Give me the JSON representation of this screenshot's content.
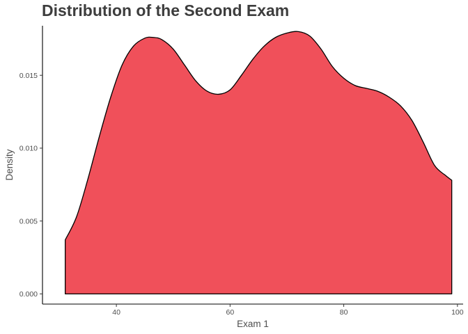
{
  "chart_data": {
    "type": "area",
    "title": "Distribution of the Second Exam",
    "xlabel": "Exam 1",
    "ylabel": "Density",
    "xlim": [
      27,
      101
    ],
    "ylim": [
      -0.0007,
      0.0184
    ],
    "x_ticks": [
      40,
      60,
      80,
      100
    ],
    "x_tick_labels": [
      "40",
      "60",
      "80",
      "100"
    ],
    "y_ticks": [
      0,
      0.005,
      0.01,
      0.015
    ],
    "y_tick_labels": [
      "0.000",
      "0.005",
      "0.010",
      "0.015"
    ],
    "grid": false,
    "legend": "none",
    "fill_color": "#F0505A",
    "line_color": "#000000",
    "series": [
      {
        "x": [
          31,
          33,
          35,
          37,
          39,
          41,
          43,
          45,
          46.5,
          48,
          50,
          52,
          54,
          56,
          58,
          60,
          62,
          64,
          66,
          68,
          70,
          72,
          74,
          76,
          78,
          80,
          82,
          84,
          86,
          88,
          90,
          92,
          94,
          96,
          98,
          99
        ],
        "y": [
          0.0037,
          0.0053,
          0.0079,
          0.0108,
          0.0135,
          0.0157,
          0.017,
          0.01755,
          0.0176,
          0.01745,
          0.0168,
          0.0157,
          0.0146,
          0.0139,
          0.0137,
          0.014,
          0.015,
          0.0161,
          0.017,
          0.0176,
          0.0179,
          0.018,
          0.0177,
          0.0168,
          0.0156,
          0.0148,
          0.0143,
          0.0141,
          0.0139,
          0.0135,
          0.0129,
          0.0119,
          0.0104,
          0.0088,
          0.0081,
          0.0078
        ]
      }
    ]
  }
}
